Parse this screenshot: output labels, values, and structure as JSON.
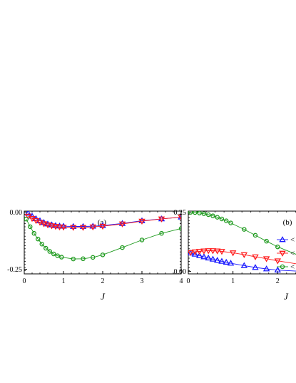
{
  "chart_data": [
    {
      "type": "line",
      "panel_label": "(a)",
      "xlabel": "J",
      "ylabel": "",
      "xlim": [
        0,
        4
      ],
      "ylim": [
        -0.27,
        0.004
      ],
      "xticks": [
        0,
        1,
        2,
        3,
        4
      ],
      "xtick_labels": [
        "0",
        "1",
        "2",
        "3",
        "4"
      ],
      "yticks": [
        0.0,
        -0.25
      ],
      "ytick_labels": [
        "0.00",
        "-0.25"
      ],
      "grid": false,
      "series": [
        {
          "marker": "triangle-up",
          "color": "#1a1aff",
          "x": [
            0.1,
            0.2,
            0.3,
            0.4,
            0.5,
            0.6,
            0.7,
            0.8,
            0.9,
            1.0,
            1.25,
            1.5,
            1.75,
            2.0,
            2.5,
            3.0,
            3.5,
            4.0
          ],
          "y": [
            -0.005,
            -0.018,
            -0.029,
            -0.038,
            -0.046,
            -0.052,
            -0.056,
            -0.059,
            -0.061,
            -0.062,
            -0.063,
            -0.063,
            -0.062,
            -0.059,
            -0.05,
            -0.038,
            -0.03,
            -0.022
          ]
        },
        {
          "marker": "triangle-down",
          "color": "#ff1a1a",
          "x": [
            0.1,
            0.2,
            0.3,
            0.4,
            0.5,
            0.6,
            0.7,
            0.8,
            0.9,
            1.0,
            1.25,
            1.5,
            1.75,
            2.0,
            2.5,
            3.0,
            3.5,
            4.0
          ],
          "y": [
            -0.018,
            -0.028,
            -0.037,
            -0.045,
            -0.051,
            -0.056,
            -0.06,
            -0.063,
            -0.065,
            -0.066,
            -0.067,
            -0.067,
            -0.065,
            -0.062,
            -0.052,
            -0.04,
            -0.03,
            -0.022
          ]
        },
        {
          "marker": "circle",
          "color": "#1e9a1e",
          "x": [
            0.05,
            0.15,
            0.25,
            0.35,
            0.45,
            0.55,
            0.65,
            0.75,
            0.85,
            0.95,
            1.25,
            1.5,
            1.75,
            2.0,
            2.5,
            3.0,
            3.5,
            4.0
          ],
          "y": [
            -0.031,
            -0.064,
            -0.093,
            -0.118,
            -0.14,
            -0.158,
            -0.172,
            -0.183,
            -0.191,
            -0.197,
            -0.205,
            -0.204,
            -0.198,
            -0.187,
            -0.155,
            -0.122,
            -0.093,
            -0.072
          ]
        }
      ]
    },
    {
      "type": "line",
      "panel_label": "(b)",
      "xlabel": "J",
      "ylabel": "",
      "xlim": [
        0,
        2.65
      ],
      "ylim": [
        -0.01,
        0.255
      ],
      "xticks": [
        0,
        1,
        2
      ],
      "xtick_labels": [
        "0",
        "1",
        "2"
      ],
      "yticks": [
        0.25,
        0.0
      ],
      "ytick_labels": [
        "0.25",
        "0.00"
      ],
      "grid": false,
      "legend_position": "right",
      "legend_labels": [
        "<",
        "<",
        "<"
      ],
      "series": [
        {
          "marker": "triangle-up",
          "color": "#1a1aff",
          "x": [
            0.05,
            0.15,
            0.25,
            0.35,
            0.45,
            0.55,
            0.65,
            0.75,
            0.85,
            0.95,
            1.25,
            1.5,
            1.75,
            2.0,
            2.5
          ],
          "y": [
            0.078,
            0.073,
            0.067,
            0.062,
            0.057,
            0.052,
            0.047,
            0.043,
            0.039,
            0.035,
            0.025,
            0.017,
            0.011,
            0.006,
            0.001
          ]
        },
        {
          "marker": "triangle-down",
          "color": "#ff1a1a",
          "x": [
            0.05,
            0.15,
            0.25,
            0.35,
            0.45,
            0.55,
            0.65,
            0.75,
            1.0,
            1.25,
            1.5,
            1.75,
            2.0,
            2.5
          ],
          "y": [
            0.08,
            0.083,
            0.085,
            0.087,
            0.088,
            0.088,
            0.087,
            0.085,
            0.079,
            0.071,
            0.062,
            0.054,
            0.045,
            0.03
          ]
        },
        {
          "marker": "circle",
          "color": "#1e9a1e",
          "x": [
            0.05,
            0.15,
            0.25,
            0.35,
            0.45,
            0.55,
            0.65,
            0.75,
            0.85,
            0.95,
            1.25,
            1.5,
            1.75,
            2.0,
            2.5
          ],
          "y": [
            0.25,
            0.249,
            0.247,
            0.244,
            0.24,
            0.235,
            0.229,
            0.222,
            0.214,
            0.205,
            0.178,
            0.153,
            0.128,
            0.104,
            0.066
          ]
        }
      ]
    }
  ]
}
